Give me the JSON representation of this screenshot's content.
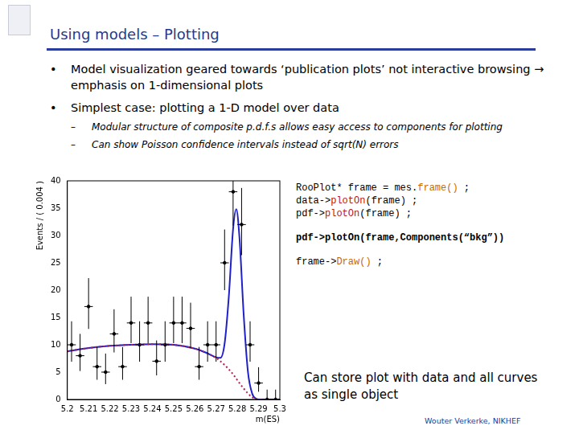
{
  "header": {
    "title": "Using models – Plotting"
  },
  "bullets": [
    {
      "text": "Model visualization geared towards ‘publication plots’ not interactive browsing → emphasis on 1-dimensional plots"
    },
    {
      "text": "Simplest case: plotting a 1-D model over data",
      "sub": [
        "Modular structure of composite p.d.f.s allows easy access to components for plotting",
        "Can show Poisson confidence intervals instead of sqrt(N) errors"
      ]
    }
  ],
  "chart_data": {
    "type": "scatter",
    "x_label": "m(ES)",
    "y_label": "Events / ( 0.004 )",
    "xlim": [
      5.2,
      5.3
    ],
    "xticks": [
      5.2,
      5.21,
      5.22,
      5.23,
      5.24,
      5.25,
      5.26,
      5.27,
      5.28,
      5.29,
      5.3
    ],
    "ylim": [
      0,
      40
    ],
    "yticks": [
      0,
      5,
      10,
      15,
      20,
      25,
      30,
      35,
      40
    ],
    "grid": false,
    "series": [
      {
        "type": "line",
        "color": "#b0204a",
        "line_style": "dotted",
        "x": [
          5.2,
          5.21,
          5.22,
          5.23,
          5.24,
          5.25,
          5.26,
          5.265,
          5.27,
          5.272,
          5.274,
          5.276,
          5.278,
          5.2795,
          5.281,
          5.283,
          5.285,
          5.287,
          5.289,
          5.29,
          5.291,
          5.3
        ],
        "values": [
          8.8,
          9.4,
          9.8,
          10.0,
          10.1,
          10.0,
          9.3,
          8.6,
          7.6,
          7.0,
          6.3,
          5.5,
          4.6,
          3.8,
          3.0,
          2.0,
          1.1,
          0.4,
          0.05,
          0,
          0,
          0
        ]
      },
      {
        "type": "line",
        "color": "#2020c8",
        "line_style": "solid",
        "x": [
          5.2,
          5.21,
          5.22,
          5.23,
          5.24,
          5.25,
          5.26,
          5.265,
          5.27,
          5.272,
          5.274,
          5.276,
          5.278,
          5.2795,
          5.281,
          5.283,
          5.285,
          5.287,
          5.289,
          5.29,
          5.291,
          5.3
        ],
        "values": [
          8.8,
          9.4,
          9.8,
          10.0,
          10.1,
          10.0,
          9.3,
          8.6,
          7.7,
          7.6,
          10.2,
          18.9,
          31.2,
          34.8,
          29.6,
          15.4,
          5.0,
          1.05,
          0.1,
          0,
          0,
          0
        ]
      },
      {
        "type": "scatter",
        "color": "#000000",
        "marker": "dot",
        "x": [
          5.202,
          5.206,
          5.21,
          5.214,
          5.218,
          5.222,
          5.226,
          5.23,
          5.234,
          5.238,
          5.242,
          5.246,
          5.25,
          5.254,
          5.258,
          5.262,
          5.266,
          5.27,
          5.274,
          5.278,
          5.282,
          5.286,
          5.29,
          5.294,
          5.298
        ],
        "values": [
          10,
          8,
          17,
          6,
          5,
          12,
          6,
          14,
          10,
          14,
          7,
          10,
          14,
          14,
          13,
          6,
          10,
          10,
          25,
          38,
          32,
          10,
          3,
          0,
          0
        ],
        "yerr_low": [
          3.1,
          2.8,
          4.1,
          2.4,
          2.2,
          3.4,
          2.4,
          3.7,
          3.1,
          3.7,
          2.6,
          3.1,
          3.7,
          3.7,
          3.6,
          2.4,
          3.1,
          3.1,
          5.0,
          6.2,
          5.6,
          3.1,
          1.6,
          0,
          0
        ],
        "yerr_high": [
          4.3,
          4.0,
          5.2,
          3.6,
          3.4,
          4.5,
          3.6,
          4.8,
          4.3,
          4.8,
          3.8,
          4.3,
          4.8,
          4.8,
          4.7,
          3.6,
          4.3,
          4.3,
          6.1,
          7.2,
          6.7,
          4.3,
          2.9,
          1.8,
          1.8
        ],
        "xerr": 0.002
      }
    ]
  },
  "code": [
    [
      [
        {
          "text": "RooPlot* frame = mes.",
          "style": "plain"
        },
        {
          "text": "frame()",
          "style": "method"
        },
        {
          "text": " ;",
          "style": "plain"
        }
      ],
      [
        {
          "text": "data->",
          "style": "plain"
        },
        {
          "text": "plotOn",
          "style": "kw"
        },
        {
          "text": "(frame) ;",
          "style": "plain"
        }
      ],
      [
        {
          "text": "pdf->",
          "style": "plain"
        },
        {
          "text": "plotOn",
          "style": "kw"
        },
        {
          "text": "(frame) ;",
          "style": "plain"
        }
      ]
    ],
    [
      [
        {
          "text": "pdf->plotOn(frame,Components(“bkg”))",
          "style": "bold"
        }
      ]
    ],
    [
      [
        {
          "text": "frame->",
          "style": "plain"
        },
        {
          "text": "Draw()",
          "style": "method"
        },
        {
          "text": " ;",
          "style": "plain"
        }
      ]
    ]
  ],
  "caption": "Can store plot with data and all curves as single object",
  "footer": "Wouter Verkerke, NIKHEF"
}
